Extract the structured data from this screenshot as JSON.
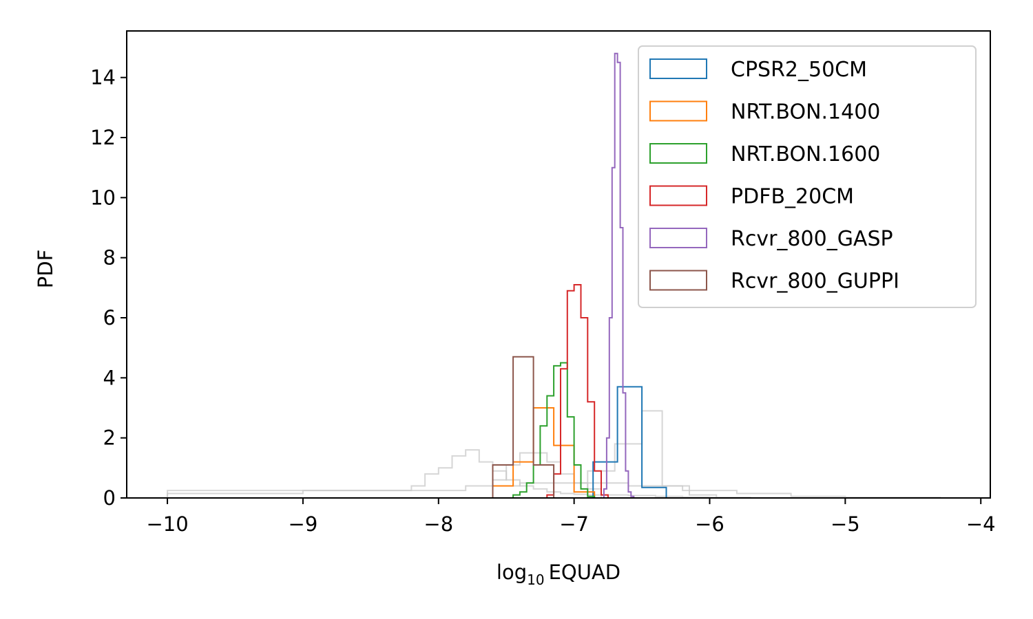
{
  "chart_data": {
    "type": "histogram",
    "xlabel_main": "log",
    "xlabel_sub": "10",
    "xlabel_rest": "EQUAD",
    "ylabel": "PDF",
    "xlim": [
      -10.3,
      -3.93
    ],
    "ylim": [
      0,
      15.55
    ],
    "xticks": [
      -10,
      -9,
      -8,
      -7,
      -6,
      -5,
      -4
    ],
    "xtick_labels": [
      "−10",
      "−9",
      "−8",
      "−7",
      "−6",
      "−5",
      "−4"
    ],
    "yticks": [
      0,
      2,
      4,
      6,
      8,
      10,
      12,
      14
    ],
    "ytick_labels": [
      "0",
      "2",
      "4",
      "6",
      "8",
      "10",
      "12",
      "14"
    ],
    "legend_position": "top-right",
    "background_series": [
      {
        "color": "#c8c8c8",
        "edges": [
          -10.0,
          -9.0,
          -8.2,
          -8.1,
          -8.0,
          -7.9,
          -7.8,
          -7.7,
          -7.6,
          -7.5,
          -7.4,
          -7.3,
          -7.2,
          -7.1,
          -7.0,
          -6.9,
          -6.8,
          -6.6,
          -6.4,
          -6.2,
          -6.0,
          -5.7
        ],
        "values": [
          0.15,
          0.25,
          0.4,
          0.8,
          1.0,
          1.4,
          1.6,
          1.2,
          0.9,
          0.6,
          0.4,
          0.3,
          0.2,
          0.15,
          0.12,
          0.1,
          0.1,
          0.08,
          0.05,
          0.03,
          0.02
        ]
      },
      {
        "color": "#c8c8c8",
        "edges": [
          -7.6,
          -7.5,
          -7.4,
          -7.3,
          -7.2,
          -7.1,
          -7.0,
          -6.9,
          -6.8
        ],
        "values": [
          0.6,
          1.1,
          1.5,
          1.5,
          1.2,
          0.8,
          0.5,
          0.3
        ]
      },
      {
        "color": "#c8c8c8",
        "edges": [
          -6.9,
          -6.7,
          -6.5,
          -6.35,
          -6.15,
          -5.95
        ],
        "values": [
          0.9,
          1.8,
          2.9,
          0.4,
          0.1
        ]
      },
      {
        "color": "#c8c8c8",
        "edges": [
          -10.0,
          -8.5,
          -7.8,
          -7.4,
          -7.0,
          -6.6,
          -6.2,
          -5.8,
          -5.4,
          -5.0,
          -4.3
        ],
        "values": [
          0.25,
          0.25,
          0.4,
          0.5,
          0.5,
          0.4,
          0.25,
          0.15,
          0.05,
          0.02
        ]
      }
    ],
    "series": [
      {
        "name": "CPSR2_50CM",
        "color": "#1f77b4",
        "edges": [
          -6.86,
          -6.68,
          -6.5,
          -6.32,
          -6.14
        ],
        "values": [
          1.2,
          3.7,
          0.35,
          0
        ]
      },
      {
        "name": "NRT.BON.1400",
        "color": "#ff7f0e",
        "edges": [
          -7.6,
          -7.45,
          -7.3,
          -7.15,
          -7.0,
          -6.85
        ],
        "values": [
          0.4,
          1.2,
          3.0,
          1.75,
          0.2
        ]
      },
      {
        "name": "NRT.BON.1600",
        "color": "#2ca02c",
        "edges": [
          -7.45,
          -7.4,
          -7.35,
          -7.3,
          -7.25,
          -7.2,
          -7.15,
          -7.1,
          -7.05,
          -7.0,
          -6.95,
          -6.9,
          -6.85
        ],
        "values": [
          0.1,
          0.2,
          0.5,
          1.1,
          2.4,
          3.4,
          4.4,
          4.5,
          2.7,
          1.1,
          0.3,
          0.05
        ]
      },
      {
        "name": "PDFB_20CM",
        "color": "#d62728",
        "edges": [
          -7.2,
          -7.15,
          -7.1,
          -7.05,
          -7.0,
          -6.95,
          -6.9,
          -6.85,
          -6.8,
          -6.75
        ],
        "values": [
          0.1,
          0.8,
          4.3,
          6.9,
          7.1,
          6.0,
          3.2,
          0.9,
          0.1
        ]
      },
      {
        "name": "Rcvr_800_GASP",
        "color": "#9467bd",
        "edges": [
          -6.78,
          -6.76,
          -6.74,
          -6.72,
          -6.7,
          -6.68,
          -6.66,
          -6.64,
          -6.62,
          -6.6,
          -6.58,
          -6.56
        ],
        "values": [
          0.3,
          2.0,
          6.0,
          11.0,
          14.8,
          14.5,
          9.0,
          3.5,
          0.9,
          0.2,
          0.05
        ]
      },
      {
        "name": "Rcvr_800_GUPPI",
        "color": "#8c564b",
        "edges": [
          -7.6,
          -7.45,
          -7.3,
          -7.15
        ],
        "values": [
          1.1,
          4.7,
          1.1
        ]
      }
    ]
  }
}
